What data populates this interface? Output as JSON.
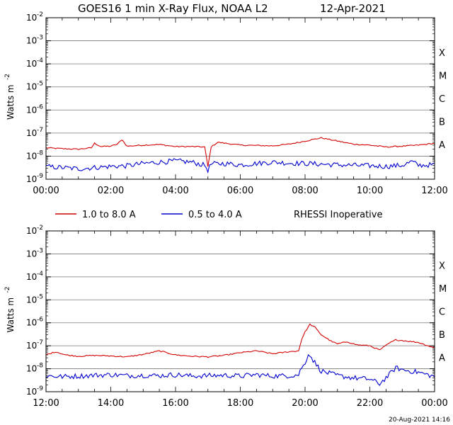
{
  "page": {
    "title": "GOES16 1 min X-Ray Flux, NOAA L2",
    "date": "12-Apr-2021",
    "footer_timestamp": "20-Aug-2021 14:16",
    "legend": {
      "items": [
        {
          "label": "1.0 to 8.0 A",
          "color": "#d40000"
        },
        {
          "label": "0.5 to 4.0 A",
          "color": "#0000d0"
        }
      ],
      "note": "RHESSI Inoperative"
    },
    "flare_class_labels": [
      "X",
      "M",
      "C",
      "B",
      "A"
    ],
    "ylabel": "Watts m",
    "ylabel_exponent": "-2"
  },
  "chart_data": [
    {
      "type": "line",
      "title": "GOES16 1 min X-Ray Flux, NOAA L2 12-Apr-2021",
      "ylabel": "Watts m-2",
      "yscale": "log",
      "ylim": [
        1e-09,
        0.01
      ],
      "y_tick_exponents": [
        -9,
        -8,
        -7,
        -6,
        -5,
        -4,
        -3,
        -2
      ],
      "x_ticks": [
        "00:00",
        "02:00",
        "04:00",
        "06:00",
        "08:00",
        "10:00",
        "12:00"
      ],
      "xlim_hours": [
        0,
        12
      ],
      "grid": true,
      "flare_class_right_labels": [
        "X",
        "M",
        "C",
        "B",
        "A"
      ],
      "series": [
        {
          "name": "1.0 to 8.0 A",
          "color": "#d40000",
          "x_hours": [
            0,
            0.5,
            1.0,
            1.4,
            1.5,
            1.7,
            2.0,
            2.2,
            2.35,
            2.5,
            3.0,
            3.5,
            4.0,
            4.5,
            4.9,
            5.0,
            5.1,
            5.3,
            6.0,
            7.0,
            7.5,
            8.0,
            8.5,
            9.0,
            9.5,
            10.0,
            10.5,
            11.0,
            11.5,
            12.0
          ],
          "values": [
            2.3e-08,
            2.1e-08,
            2e-08,
            2.3e-08,
            3.6e-08,
            2.6e-08,
            2.7e-08,
            3.3e-08,
            5.2e-08,
            2.7e-08,
            3e-08,
            3.2e-08,
            2.6e-08,
            2.6e-08,
            2.5e-08,
            3.5e-09,
            2.5e-08,
            4e-08,
            3e-08,
            2.8e-08,
            3.3e-08,
            4.5e-08,
            6.2e-08,
            4.5e-08,
            3.3e-08,
            3e-08,
            2.5e-08,
            2.7e-08,
            3e-08,
            3.6e-08
          ]
        },
        {
          "name": "0.5 to 4.0 A",
          "color": "#0000d0",
          "x_hours": [
            0,
            0.5,
            1.0,
            1.5,
            2.0,
            2.5,
            3.0,
            3.5,
            4.0,
            4.5,
            4.9,
            5.0,
            5.1,
            5.5,
            6.0,
            6.5,
            7.0,
            7.5,
            8.0,
            8.5,
            9.0,
            9.5,
            10.0,
            10.5,
            11.0,
            11.3,
            11.5,
            12.0
          ],
          "values": [
            3.5e-09,
            3.2e-09,
            2.8e-09,
            3.2e-09,
            3.6e-09,
            3.8e-09,
            4.8e-09,
            5.5e-09,
            6.2e-09,
            5.5e-09,
            4e-09,
            2.5e-09,
            4.5e-09,
            4.8e-09,
            4.2e-09,
            4.8e-09,
            5.5e-09,
            5e-09,
            4.8e-09,
            4.5e-09,
            4.2e-09,
            4e-09,
            3.8e-09,
            3.6e-09,
            4e-09,
            5.8e-09,
            4e-09,
            4.2e-09
          ]
        }
      ]
    },
    {
      "type": "line",
      "ylabel": "Watts m-2",
      "yscale": "log",
      "ylim": [
        1e-09,
        0.01
      ],
      "y_tick_exponents": [
        -9,
        -8,
        -7,
        -6,
        -5,
        -4,
        -3,
        -2
      ],
      "x_ticks": [
        "12:00",
        "14:00",
        "16:00",
        "18:00",
        "20:00",
        "22:00",
        "00:00"
      ],
      "xlim_hours": [
        12,
        24
      ],
      "grid": true,
      "flare_class_right_labels": [
        "X",
        "M",
        "C",
        "B",
        "A"
      ],
      "series": [
        {
          "name": "1.0 to 8.0 A",
          "color": "#d40000",
          "x_hours": [
            12.0,
            12.3,
            12.6,
            13.0,
            13.5,
            14.0,
            14.5,
            15.0,
            15.5,
            16.0,
            16.5,
            17.0,
            17.5,
            18.0,
            18.5,
            19.0,
            19.5,
            19.8,
            19.9,
            20.0,
            20.15,
            20.3,
            20.5,
            20.8,
            21.0,
            21.3,
            21.6,
            22.0,
            22.3,
            22.6,
            22.8,
            23.0,
            23.5,
            24.0
          ],
          "values": [
            4e-08,
            5.5e-08,
            4e-08,
            3.5e-08,
            3.8e-08,
            3.6e-08,
            3.3e-08,
            4.2e-08,
            6e-08,
            4e-08,
            3.5e-08,
            3.3e-08,
            3.8e-08,
            5e-08,
            6e-08,
            4.5e-08,
            5.5e-08,
            6e-08,
            2e-07,
            4e-07,
            8.5e-07,
            6.5e-07,
            3e-07,
            1.6e-07,
            1.2e-07,
            1.5e-07,
            1.1e-07,
            1e-07,
            6.5e-08,
            1.3e-07,
            1.8e-07,
            1.7e-07,
            1.4e-07,
            8e-08
          ]
        },
        {
          "name": "0.5 to 4.0 A",
          "color": "#0000d0",
          "x_hours": [
            12.0,
            12.5,
            13.0,
            13.5,
            14.0,
            14.5,
            15.0,
            15.5,
            16.0,
            16.5,
            17.0,
            17.5,
            18.0,
            18.5,
            19.0,
            19.5,
            19.8,
            19.9,
            20.0,
            20.1,
            20.2,
            20.35,
            20.5,
            20.8,
            21.0,
            21.5,
            22.0,
            22.3,
            22.6,
            22.8,
            23.0,
            23.5,
            24.0
          ],
          "values": [
            5e-09,
            4.5e-09,
            4.8e-09,
            5.2e-09,
            5.5e-09,
            5e-09,
            5.2e-09,
            5e-09,
            5.5e-09,
            4.8e-09,
            5e-09,
            5.2e-09,
            4.8e-09,
            5.5e-09,
            4.8e-09,
            5e-09,
            5.5e-09,
            1.2e-08,
            1.5e-08,
            5e-08,
            3e-08,
            1.5e-08,
            8e-09,
            6e-09,
            5e-09,
            4e-09,
            3.5e-09,
            2.2e-09,
            5.5e-09,
            1.1e-08,
            9e-09,
            7e-09,
            4.5e-09
          ]
        }
      ]
    }
  ]
}
